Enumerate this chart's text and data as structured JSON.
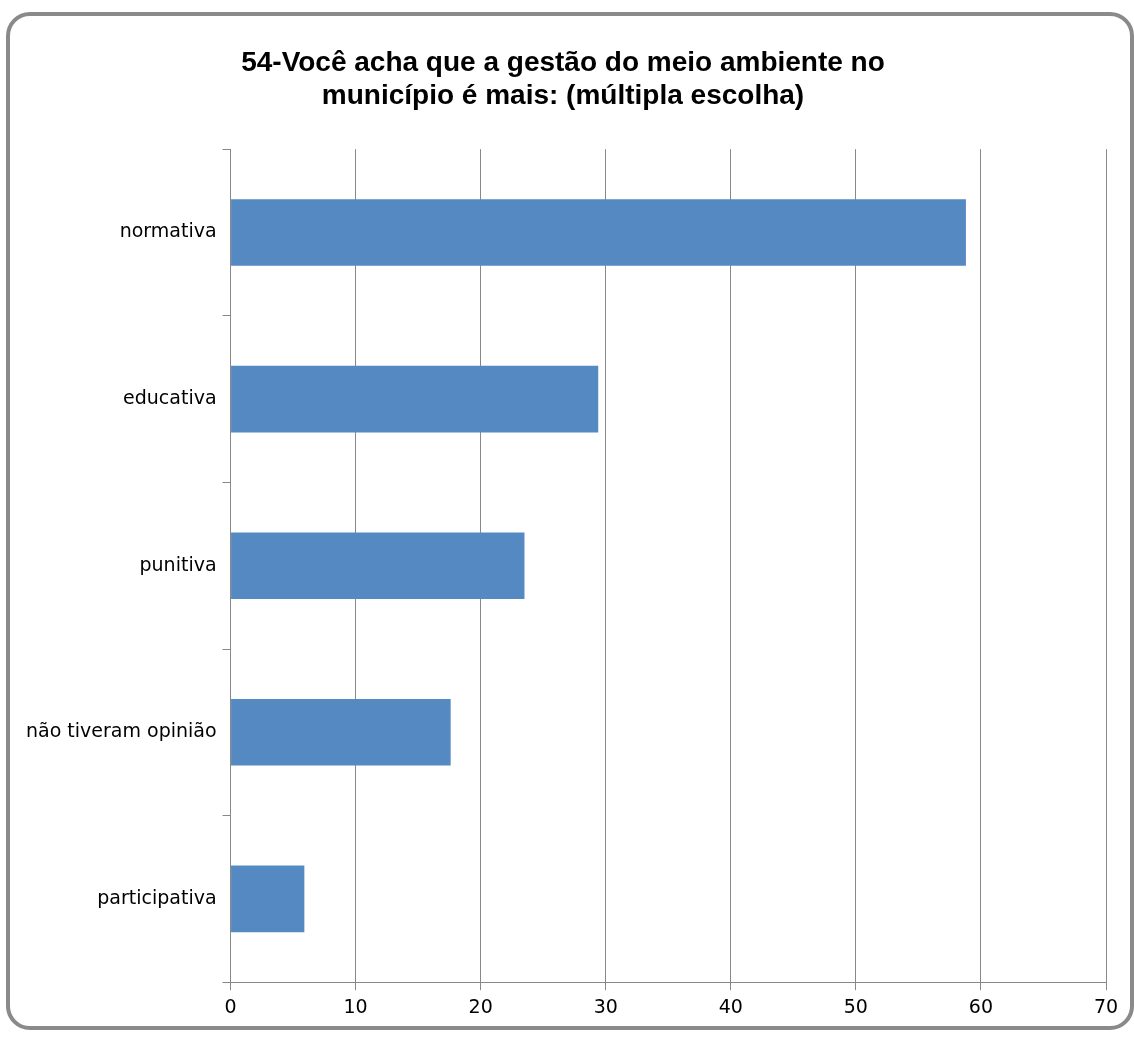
{
  "chart_data": {
    "type": "bar",
    "orientation": "horizontal",
    "title": [
      "54-Você acha que a gestão do meio ambiente no",
      "município é mais: (múltipla escolha)"
    ],
    "categories": [
      "normativa",
      "educativa",
      "punitiva",
      "não tiveram opinião",
      "participativa"
    ],
    "values": [
      58.8,
      29.4,
      23.5,
      17.6,
      5.9
    ],
    "color": "#5589c2",
    "xlim": [
      0,
      70
    ],
    "xticks": [
      0,
      10,
      20,
      30,
      40,
      50,
      60,
      70
    ],
    "grid": "x"
  }
}
